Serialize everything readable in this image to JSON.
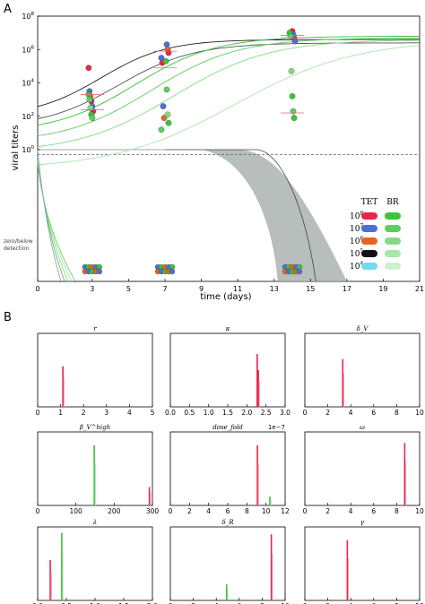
{
  "panel_a": {
    "letter": "A",
    "xlabel": "time (days)",
    "ylabel": "viral titers",
    "zero_label": [
      "zero/below",
      "detection"
    ],
    "x_ticks": [
      "0",
      "3",
      "5",
      "7",
      "9",
      "11",
      "13",
      "15",
      "17",
      "19",
      "21"
    ],
    "y_ticks": [
      {
        "base": "10",
        "exp": "8",
        "v": 8
      },
      {
        "base": "10",
        "exp": "6",
        "v": 6
      },
      {
        "base": "10",
        "exp": "4",
        "v": 4
      },
      {
        "base": "10",
        "exp": "2",
        "v": 2
      },
      {
        "base": "10",
        "exp": "0",
        "v": 0
      }
    ],
    "legend": {
      "headers": [
        "TET",
        "BR"
      ],
      "rows": [
        {
          "base": "10",
          "exp": "8",
          "tet": "#e8264a",
          "br": "#3ac43a"
        },
        {
          "base": "10",
          "exp": "7",
          "tet": "#4d70d6",
          "br": "#5cd05c"
        },
        {
          "base": "10",
          "exp": "6",
          "tet": "#e8641e",
          "br": "#85db85"
        },
        {
          "base": "10",
          "exp": "5",
          "tet": "#111111",
          "br": "#a9e6a9"
        },
        {
          "base": "10",
          "exp": "4",
          "tet": "#73d9f0",
          "br": "#cdf1cd"
        }
      ]
    }
  },
  "chart_data": [
    {
      "type": "scatter",
      "xlabel": "time (days)",
      "ylabel": "viral titers",
      "yscale": "log",
      "xlim": [
        0,
        21
      ],
      "ylim": [
        0,
        8
      ],
      "x_ticks": [
        0,
        3,
        5,
        7,
        9,
        11,
        13,
        15,
        17,
        19,
        21
      ],
      "detection_limit_log": 0.3,
      "series": [
        {
          "name": "TET",
          "points": [
            {
              "x": 3,
              "y": 4.9
            },
            {
              "x": 3,
              "y": 3.5
            },
            {
              "x": 3,
              "y": 3.2
            },
            {
              "x": 3,
              "y": 2.9
            },
            {
              "x": 3,
              "y": 2.6
            },
            {
              "x": 3,
              "y": 2.3
            },
            {
              "x": 7,
              "y": 6.3
            },
            {
              "x": 7,
              "y": 6.0
            },
            {
              "x": 7,
              "y": 5.8
            },
            {
              "x": 7,
              "y": 5.5
            },
            {
              "x": 7,
              "y": 5.2
            },
            {
              "x": 7,
              "y": 2.6
            },
            {
              "x": 7,
              "y": 1.9
            },
            {
              "x": 14,
              "y": 7.1
            },
            {
              "x": 14,
              "y": 6.9
            },
            {
              "x": 14,
              "y": 6.7
            },
            {
              "x": 14,
              "y": 6.5
            }
          ]
        },
        {
          "name": "BR",
          "points": [
            {
              "x": 3,
              "y": 3.3
            },
            {
              "x": 3,
              "y": 3.0
            },
            {
              "x": 3,
              "y": 2.5
            },
            {
              "x": 3,
              "y": 2.1
            },
            {
              "x": 3,
              "y": 1.9
            },
            {
              "x": 7,
              "y": 5.3
            },
            {
              "x": 7,
              "y": 3.6
            },
            {
              "x": 7,
              "y": 2.1
            },
            {
              "x": 7,
              "y": 1.6
            },
            {
              "x": 7,
              "y": 1.2
            },
            {
              "x": 14,
              "y": 7.0
            },
            {
              "x": 14,
              "y": 6.8
            },
            {
              "x": 14,
              "y": 4.7
            },
            {
              "x": 14,
              "y": 3.2
            },
            {
              "x": 14,
              "y": 2.3
            },
            {
              "x": 14,
              "y": 1.9
            }
          ]
        }
      ],
      "legend": "right"
    },
    {
      "type": "histogram_grid",
      "panel_letter": "B",
      "panels": [
        {
          "label": "r",
          "xlim": [
            0,
            5
          ],
          "ticks": [
            "0",
            "1",
            "2",
            "3",
            "4",
            "5"
          ],
          "bars": [
            {
              "x": 1.1,
              "h": 0.55,
              "c": "red"
            }
          ]
        },
        {
          "label": "κ",
          "xlim": [
            0,
            3
          ],
          "ticks": [
            "0.0",
            "0.5",
            "1.0",
            "1.5",
            "2.0",
            "2.5",
            "3.0"
          ],
          "bars": [
            {
              "x": 2.27,
              "h": 0.72,
              "c": "red"
            },
            {
              "x": 2.3,
              "h": 0.5,
              "c": "red"
            }
          ]
        },
        {
          "label": "δ_V",
          "xlim": [
            0,
            10
          ],
          "ticks": [
            "0",
            "2",
            "4",
            "6",
            "8",
            "10"
          ],
          "bars": [
            {
              "x": 3.3,
              "h": 0.65,
              "c": "red"
            }
          ]
        },
        {
          "label": "β_V^high",
          "xlim": [
            0,
            300
          ],
          "ticks": [
            "0",
            "100",
            "200",
            "300"
          ],
          "bars": [
            {
              "x": 148,
              "h": 0.82,
              "c": "green"
            },
            {
              "x": 292,
              "h": 0.25,
              "c": "red"
            }
          ]
        },
        {
          "label": "dose_fold",
          "xlim": [
            0,
            12
          ],
          "ticks": [
            "0",
            "2",
            "4",
            "6",
            "8",
            "10",
            "12"
          ],
          "multiplier": "1e−7",
          "bars": [
            {
              "x": 9.1,
              "h": 0.82,
              "c": "red"
            },
            {
              "x": 10.4,
              "h": 0.12,
              "c": "green"
            }
          ]
        },
        {
          "label": "ω",
          "xlim": [
            0,
            10
          ],
          "ticks": [
            "0",
            "2",
            "4",
            "6",
            "8",
            "10"
          ],
          "bars": [
            {
              "x": 8.7,
              "h": 0.85,
              "c": "red"
            }
          ]
        },
        {
          "label": "λ",
          "xlim": [
            0,
            2
          ],
          "ticks": [
            "0.0",
            "0.5",
            "1.0",
            "1.5",
            "2.0"
          ],
          "bars": [
            {
              "x": 0.22,
              "h": 0.55,
              "c": "red"
            },
            {
              "x": 0.42,
              "h": 0.92,
              "c": "green"
            }
          ]
        },
        {
          "label": "δ_R",
          "xlim": [
            0,
            10
          ],
          "ticks": [
            "0",
            "2",
            "4",
            "6",
            "8",
            "10"
          ],
          "bars": [
            {
              "x": 4.9,
              "h": 0.22,
              "c": "green"
            },
            {
              "x": 8.8,
              "h": 0.9,
              "c": "red"
            }
          ]
        },
        {
          "label": "γ",
          "xlim": [
            0,
            10
          ],
          "ticks": [
            "0",
            "2",
            "4",
            "6",
            "8",
            "10"
          ],
          "bars": [
            {
              "x": 3.7,
              "h": 0.82,
              "c": "red"
            }
          ]
        }
      ]
    }
  ]
}
